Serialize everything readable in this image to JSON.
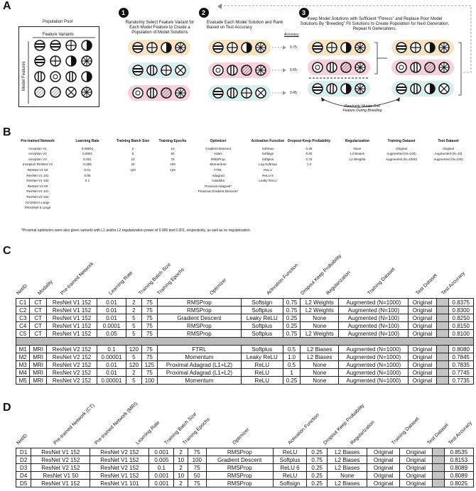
{
  "panel_a": {
    "letter": "A",
    "pool_title": "Population Pool",
    "feature_variants": "Feature Variants",
    "model_features": "Model Features",
    "step1": "Randomly Select Feature Variant for Each Model Feature to Create a Population of Model Solutions",
    "step2": "Evaluate Each Model Solution and Rank Based on Test Accuracy",
    "step3": "Keep Model Solutions with Sufficient “Fitness” and Replace Poor Model Solutions By “Breeding” Fit Solutions to Create Population for Next Generation.  Repeat N Generations.",
    "accuracy_label": "Accuracy",
    "accuracies": [
      "0.75",
      "0.65",
      "0.45"
    ],
    "mutate": "Randomly Mutate One Feature During Breeding",
    "step_numbers": [
      "1",
      "2",
      "3"
    ]
  },
  "panel_b": {
    "letter": "B",
    "columns": [
      {
        "header": "Pre-trained Network",
        "values": [
          "Inception V1",
          "Inception V2",
          "Inception V3",
          "Inception ResNet V2",
          "ResNet V1 50",
          "ResNet V1 101",
          "ResNet V1 152",
          "ResNet V2 50",
          "ResNet V2 101",
          "ResNet V2 152",
          "NASNet A Large",
          "PNASNet 5 Large"
        ]
      },
      {
        "header": "Learning Rate",
        "values": [
          "0.00001",
          "0.0001",
          "0.001",
          "0.005",
          "0.01",
          "0.05",
          "0.1"
        ]
      },
      {
        "header": "Training Batch Size",
        "values": [
          "2",
          "5",
          "10",
          "20",
          "120"
        ]
      },
      {
        "header": "Training Epochs",
        "values": [
          "10",
          "50",
          "75",
          "100",
          "125"
        ]
      },
      {
        "header": "Optimizer",
        "values": [
          "Gradient Descent",
          "Adam",
          "RMSProp",
          "Momentum",
          "FTRL",
          "Adagrad",
          "Adadelta",
          "Proximal Adagrad*",
          "Proximal Gradient Descent*"
        ]
      },
      {
        "header": "Activation Function",
        "values": [
          "Softmax",
          "Softsign",
          "Softplus",
          "Log Softmax",
          "ReLU",
          "ReLU 6",
          "Leaky ReLU"
        ]
      },
      {
        "header": "Dropout Keep Probability",
        "values": [
          "0.25",
          "0.50",
          "0.75",
          "1.0"
        ]
      },
      {
        "header": "Regularization",
        "values": [
          "None",
          "L2 Biases",
          "L2 Weights"
        ]
      },
      {
        "header": "Training Dataset",
        "values": [
          "Original",
          "Augmented (N=100)",
          "Augmented (N=1000)"
        ]
      },
      {
        "header": "Test Dataset",
        "values": [
          "Original",
          "Augmented (N=10)",
          "Augmented (N=100)"
        ]
      }
    ],
    "footnote": "*Proximal optimizers were also given variants with L1 and/or L2 regularization power of 0.005 and 0.001, respectively, as well as no regularization."
  },
  "panel_c": {
    "letter": "C",
    "headers": [
      "NetID",
      "Modality",
      "Pre-trained Network",
      "Learning Rate",
      "Training Batch Size",
      "Training Epochs",
      "Optimizer",
      "Activation Function",
      "Dropout Keep Probability",
      "Regularization",
      "Training Dataset",
      "Test Dataset",
      "Test Accuracy"
    ],
    "rows": [
      [
        "C1",
        "CT",
        "ResNet V1 152",
        "0.01",
        "2",
        "75",
        "RMSProp",
        "Softsign",
        "0.75",
        "L2 Weights",
        "Augmented (N=1000)",
        "Original",
        "0.8375"
      ],
      [
        "C2",
        "CT",
        "ResNet V1 152",
        "0.01",
        "2",
        "75",
        "RMSProp",
        "Softplus",
        "0.75",
        "L2 Weights",
        "Augmented (N=100)",
        "Original",
        "0.8300"
      ],
      [
        "C3",
        "CT",
        "ResNet V1 152",
        "0.01",
        "5",
        "75",
        "Gradient Descent",
        "Leaky ReLU",
        "0.25",
        "None",
        "Augmented (N=100)",
        "Original",
        "0.8250"
      ],
      [
        "C4",
        "CT",
        "ResNet V1 152",
        "0.0001",
        "5",
        "75",
        "RMSProp",
        "Softplus",
        "0.25",
        "None",
        "Augmented (N=100)",
        "Original",
        "0.8150"
      ],
      [
        "C5",
        "CT",
        "ResNet V1 152",
        "0.05",
        "5",
        "75",
        "RMSProp",
        "Softplus",
        "0.75",
        "L2 Weights",
        "Augmented (N=100)",
        "Original",
        "0.8100"
      ]
    ],
    "rows2": [
      [
        "M1",
        "MRI",
        "ResNet V2 152",
        "0.1",
        "120",
        "75",
        "FTRL",
        "Softplus",
        "0.5",
        "L2 Biases",
        "Augmented (N=1000)",
        "Original",
        "0.8080"
      ],
      [
        "M2",
        "MRI",
        "ResNet V2 152",
        "0.00001",
        "5",
        "75",
        "Momentum",
        "Leaky ReLU",
        "1.0",
        "L2 Biases",
        "Augmented (N=1000)",
        "Original",
        "0.7845"
      ],
      [
        "M3",
        "MRI",
        "ResNet V2 152",
        "0.01",
        "120",
        "125",
        "Proximal Adagrad (L1+L2)",
        "ReLU",
        "0.5",
        "None",
        "Augmented (N=1000)",
        "Original",
        "0.7835"
      ],
      [
        "M4",
        "MRI",
        "ResNet V2 152",
        "0.01",
        "2",
        "75",
        "Proximal Adagrad (L1+L2)",
        "ReLU",
        "1",
        "None",
        "Augmented (N=1000)",
        "Original",
        "0.7745"
      ],
      [
        "M5",
        "MRI",
        "ResNet V2 152",
        "0.00001",
        "5",
        "100",
        "Momentum",
        "ReLU",
        "0.25",
        "None",
        "Augmented (N=1000)",
        "Original",
        "0.7735"
      ]
    ]
  },
  "panel_d": {
    "letter": "D",
    "headers": [
      "NetID",
      "Pre-trained Network (CT)",
      "Pre-trained Network (MRI)",
      "Learning Rate",
      "Training Batch Size",
      "Training Epochs",
      "Optimizer",
      "Activation Function",
      "Dropout Keep Probability",
      "Regularization",
      "Training Dataset",
      "Test Dataset",
      "Test Accuracy"
    ],
    "rows": [
      [
        "D1",
        "ResNet V1 152",
        "ResNet V2 152",
        "0.001",
        "2",
        "75",
        "RMSProp",
        "ReLU",
        "0.25",
        "L2 Biases",
        "Original",
        "Original",
        "0.8535"
      ],
      [
        "D2",
        "ResNet V2 152",
        "ResNet V1 152",
        "0.005",
        "10",
        "100",
        "Gradient Descent",
        "Softplus",
        "0.75",
        "L2 Biases",
        "Original",
        "Original",
        "0.8153"
      ],
      [
        "D3",
        "ResNet V2 152",
        "ResNet V2 152",
        "0.1",
        "2",
        "75",
        "RMSProp",
        "ReLU 6",
        "0.25",
        "L2 Biases",
        "Original",
        "Original",
        "0.8089"
      ],
      [
        "D4",
        "ResNet V1 50",
        "ResNet V1 152",
        "0.001",
        "10",
        "50",
        "RMSProp",
        "ReLU",
        "0.25",
        "None",
        "Original",
        "Original",
        "0.8089"
      ],
      [
        "D5",
        "ResNet V1 152",
        "ResNet V1 101",
        "0.001",
        "2",
        "75",
        "RMSProp",
        "Softsign",
        "0.25",
        "L2 Biases",
        "Original",
        "Original",
        "0.8025"
      ]
    ]
  }
}
